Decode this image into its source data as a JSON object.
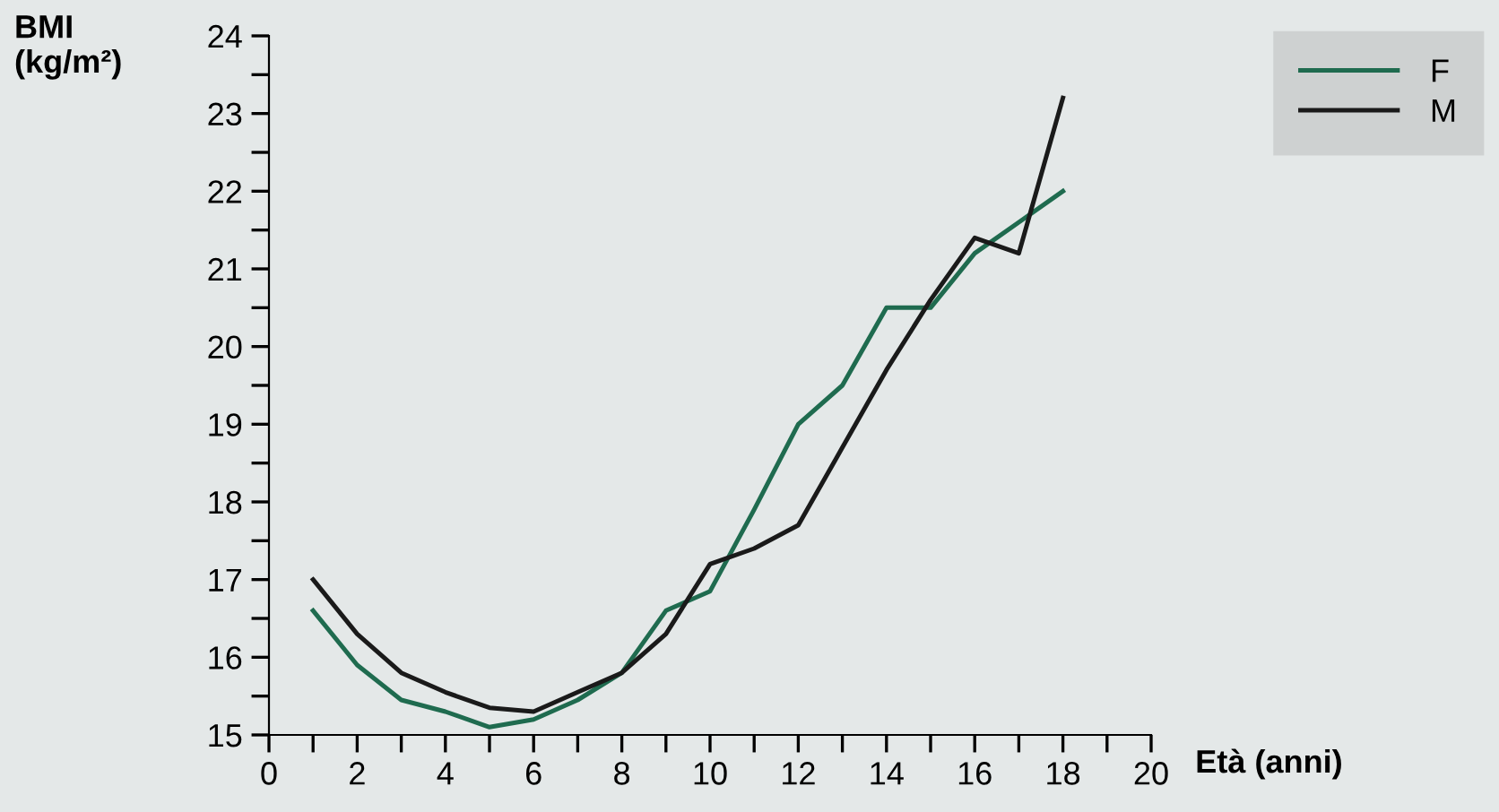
{
  "chart_data": {
    "type": "line",
    "xlabel": "Età (anni)",
    "ylabel": "BMI\n(kg/m²)",
    "x": [
      1,
      2,
      3,
      4,
      5,
      6,
      7,
      8,
      9,
      10,
      11,
      12,
      13,
      14,
      15,
      16,
      17,
      18
    ],
    "series": [
      {
        "name": "F",
        "color": "#1f6b4f",
        "values": [
          16.6,
          15.9,
          15.45,
          15.3,
          15.1,
          15.2,
          15.45,
          15.8,
          16.6,
          16.85,
          17.9,
          19.0,
          19.5,
          20.5,
          20.5,
          21.2,
          21.6,
          22.0
        ]
      },
      {
        "name": "M",
        "color": "#1a1a1a",
        "values": [
          17.0,
          16.3,
          15.8,
          15.55,
          15.35,
          15.3,
          15.55,
          15.8,
          16.3,
          17.2,
          17.4,
          17.7,
          18.7,
          19.7,
          20.6,
          21.4,
          21.2,
          23.2
        ]
      }
    ],
    "xlim": [
      0,
      20
    ],
    "ylim": [
      15,
      24
    ],
    "xticks": [
      0,
      {
        "value": 1,
        "label": null
      },
      2,
      {
        "value": 3,
        "label": null
      },
      4,
      {
        "value": 5,
        "label": null
      },
      6,
      {
        "value": 7,
        "label": null
      },
      8,
      {
        "value": 9,
        "label": null
      },
      10,
      {
        "value": 11,
        "label": null
      },
      12,
      {
        "value": 13,
        "label": null
      },
      14,
      {
        "value": 15,
        "label": null
      },
      16,
      {
        "value": 17,
        "label": null
      },
      18,
      {
        "value": 19,
        "label": null
      },
      20
    ],
    "yticks": [
      15,
      {
        "value": 15.5,
        "label": null
      },
      16,
      {
        "value": 16.5,
        "label": null
      },
      17,
      {
        "value": 17.5,
        "label": null
      },
      18,
      {
        "value": 18.5,
        "label": null
      },
      19,
      {
        "value": 19.5,
        "label": null
      },
      20,
      {
        "value": 20.5,
        "label": null
      },
      21,
      {
        "value": 21.5,
        "label": null
      },
      22,
      {
        "value": 22.5,
        "label": null
      },
      23,
      {
        "value": 23.5,
        "label": null
      },
      24
    ],
    "grid": false,
    "legend": "top right",
    "marker": "none",
    "line_style": "solid"
  }
}
